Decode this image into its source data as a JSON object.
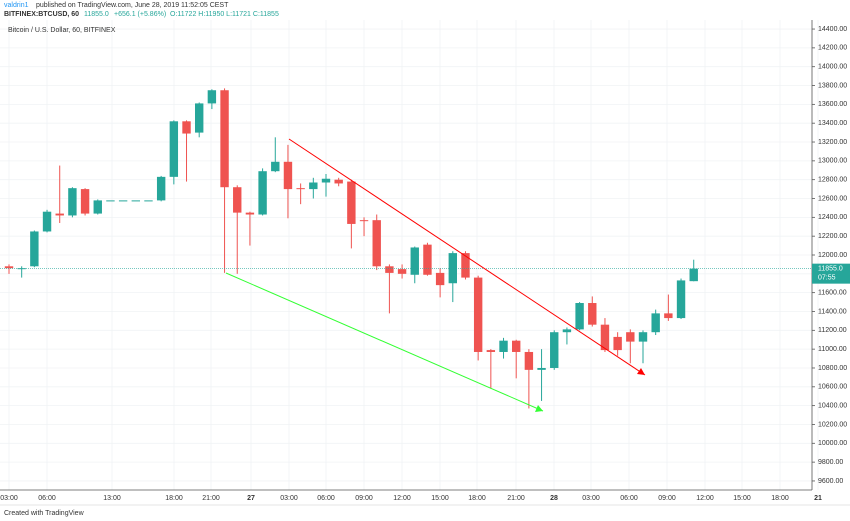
{
  "header": {
    "author": "valdrin1",
    "published": "published on TradingView.com, June 28, 2019 11:52:05 CEST",
    "symbol": "BITFINEX:BTCUSD, 60",
    "price": "11855.0",
    "change": "+656.1 (+5.86%)",
    "ohlc": "O:11722 H:11950 L:11721 C:11855"
  },
  "footer": "Created with TradingView",
  "chart_data": {
    "type": "candlestick",
    "title": "Bitcoin / U.S. Dollar, 60, BITFINEX",
    "up_color": "#26a69a",
    "down_color": "#ef5350",
    "open": [
      11880,
      11850,
      11880,
      12250,
      12440,
      12420,
      12700,
      12440,
      12580,
      12580,
      12580,
      12580,
      12580,
      12830,
      13420,
      13300,
      13610,
      13750,
      12720,
      12450,
      12430,
      12890,
      12990,
      12710,
      12700,
      12770,
      12800,
      12780,
      12370,
      12370,
      11880,
      11850,
      11790,
      12110,
      11810,
      11700,
      12020,
      11760,
      10990,
      10970,
      11090,
      10970,
      10780,
      10800,
      11180,
      11210,
      11490,
      11260,
      11130,
      11180,
      11080,
      11180,
      11380,
      11330,
      11722
    ],
    "high": [
      11900,
      11880,
      12260,
      12480,
      12950,
      12720,
      12710,
      12590,
      12580,
      12580,
      12580,
      12580,
      12840,
      13430,
      13430,
      13620,
      13760,
      13770,
      12740,
      12460,
      12920,
      13250,
      13170,
      12760,
      12820,
      12860,
      12820,
      12800,
      12400,
      12430,
      11900,
      11900,
      12090,
      12130,
      11860,
      12040,
      12040,
      11780,
      11000,
      11120,
      11100,
      11000,
      11000,
      11200,
      11230,
      11500,
      11560,
      11330,
      11180,
      11210,
      11200,
      11420,
      11580,
      11750,
      11950
    ],
    "low": [
      11800,
      11760,
      11870,
      12240,
      12340,
      12400,
      12420,
      12430,
      12580,
      12580,
      12580,
      12580,
      12570,
      12750,
      12780,
      13250,
      13550,
      11810,
      11800,
      12100,
      12420,
      12880,
      12390,
      12540,
      12600,
      12620,
      12730,
      12070,
      12200,
      11840,
      11380,
      11750,
      11700,
      11780,
      11550,
      11500,
      11740,
      10880,
      10580,
      10900,
      10690,
      10370,
      10450,
      10780,
      11050,
      11200,
      11240,
      10970,
      10930,
      10850,
      10850,
      11150,
      11300,
      11320,
      11721
    ],
    "close": [
      11860,
      11860,
      12250,
      12460,
      12420,
      12710,
      12440,
      12580,
      12580,
      12580,
      12580,
      12580,
      12830,
      13420,
      13290,
      13610,
      13750,
      12720,
      12450,
      12430,
      12890,
      12990,
      12700,
      12700,
      12770,
      12810,
      12760,
      12330,
      12360,
      11880,
      11810,
      11800,
      12080,
      11790,
      11680,
      12020,
      11760,
      10970,
      10970,
      11090,
      10970,
      10780,
      10800,
      11180,
      11210,
      11490,
      11260,
      10990,
      10990,
      11080,
      11180,
      11380,
      11330,
      11730,
      11855
    ],
    "ylim": [
      9504,
      14496
    ],
    "yticks": [
      {
        "value": 9600,
        "label": "9600.00"
      },
      {
        "value": 9800,
        "label": "9800.00"
      },
      {
        "value": 10000,
        "label": "10000.00"
      },
      {
        "value": 10200,
        "label": "10200.00"
      },
      {
        "value": 10400,
        "label": "10400.00"
      },
      {
        "value": 10600,
        "label": "10600.00"
      },
      {
        "value": 10800,
        "label": "10800.00"
      },
      {
        "value": 11000,
        "label": "11000.00"
      },
      {
        "value": 11200,
        "label": "11200.00"
      },
      {
        "value": 11400,
        "label": "11400.00"
      },
      {
        "value": 11600,
        "label": "11600.00"
      },
      {
        "value": 11800,
        "label": "11800.00"
      },
      {
        "value": 12000,
        "label": "12000.00"
      },
      {
        "value": 12200,
        "label": "12200.00"
      },
      {
        "value": 12400,
        "label": "12400.00"
      },
      {
        "value": 12600,
        "label": "12600.00"
      },
      {
        "value": 12800,
        "label": "12800.00"
      },
      {
        "value": 13000,
        "label": "13000.00"
      },
      {
        "value": 13200,
        "label": "13200.00"
      },
      {
        "value": 13400,
        "label": "13400.00"
      },
      {
        "value": 13600,
        "label": "13600.00"
      },
      {
        "value": 13800,
        "label": "13800.00"
      },
      {
        "value": 14000,
        "label": "14000.00"
      },
      {
        "value": 14200,
        "label": "14200.00"
      },
      {
        "value": 14400,
        "label": "14400.00"
      }
    ],
    "xlabels": [
      "03:00",
      "06:00",
      "13:00",
      "18:00",
      "21:00",
      "27",
      "03:00",
      "06:00",
      "09:00",
      "12:00",
      "15:00",
      "18:00",
      "21:00",
      "28",
      "03:00",
      "06:00",
      "09:00",
      "12:00",
      "15:00",
      "18:00",
      "21"
    ],
    "last_price_label": "11855.0",
    "countdown": "07:55",
    "grid": true
  }
}
